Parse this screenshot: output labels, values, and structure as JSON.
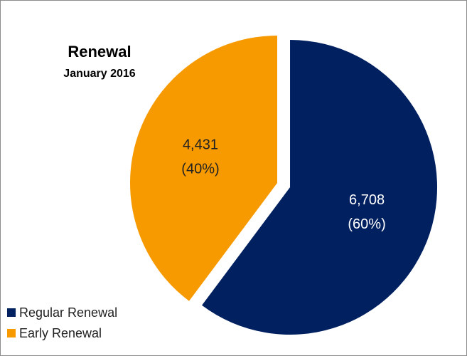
{
  "chart_data": {
    "type": "pie",
    "title": "Renewal",
    "subtitle": "January 2016",
    "categories": [
      "Regular Renewal",
      "Early Renewal"
    ],
    "values": [
      6708,
      4431
    ],
    "value_labels": [
      "6,708",
      "4,431"
    ],
    "percents": [
      60,
      40
    ],
    "percent_labels": [
      "(60%)",
      "(40%)"
    ],
    "colors": [
      "#002060",
      "#f79a00"
    ],
    "label_colors": [
      "#ffffff",
      "#222222"
    ],
    "legend": "bottom-left"
  }
}
